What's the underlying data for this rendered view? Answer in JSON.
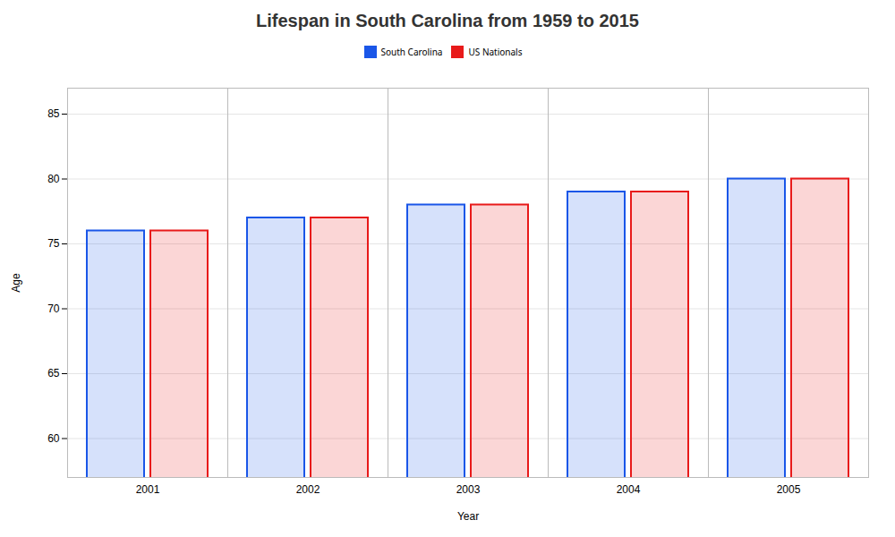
{
  "chart_data": {
    "type": "bar",
    "title": "Lifespan in South Carolina from 1959 to 2015",
    "xlabel": "Year",
    "ylabel": "Age",
    "categories": [
      "2001",
      "2002",
      "2003",
      "2004",
      "2005"
    ],
    "series": [
      {
        "name": "South Carolina",
        "color": "#1a56e8",
        "values": [
          76,
          77,
          78,
          79,
          80
        ]
      },
      {
        "name": "US Nationals",
        "color": "#e81a1a",
        "values": [
          76,
          77,
          78,
          79,
          80
        ]
      }
    ],
    "ylim": [
      57,
      87
    ],
    "yticks": [
      60,
      65,
      70,
      75,
      80,
      85
    ],
    "grid": true,
    "legend": "top"
  }
}
